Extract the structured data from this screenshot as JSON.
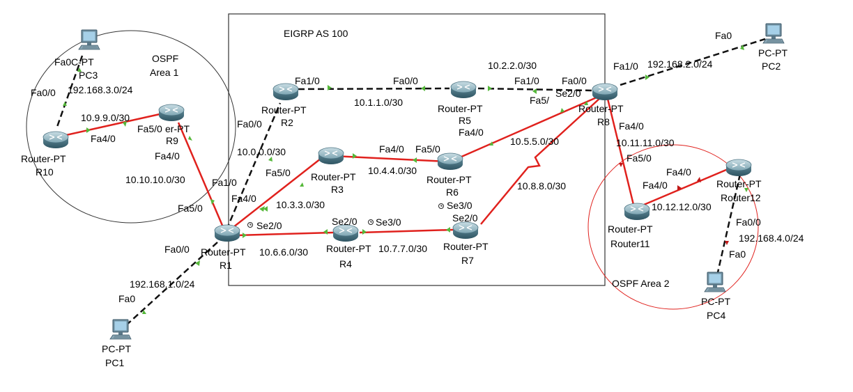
{
  "regions": {
    "eigrp": "EIGRP AS 100",
    "ospf1_line1": "OSPF",
    "ospf1_line2": "Area 1",
    "ospf2": "OSPF Area 2"
  },
  "devices": {
    "R1": {
      "type": "Router-PT",
      "name": "R1"
    },
    "R2": {
      "type": "Router-PT",
      "name": "R2"
    },
    "R3": {
      "type": "Router-PT",
      "name": "R3"
    },
    "R4": {
      "type": "Router-PT",
      "name": "R4"
    },
    "R5": {
      "type": "Router-PT",
      "name": "R5"
    },
    "R6": {
      "type": "Router-PT",
      "name": "R6"
    },
    "R7": {
      "type": "Router-PT",
      "name": "R7"
    },
    "R8": {
      "type": "Router-PT",
      "name": "R8"
    },
    "R9": {
      "type": "er-PT",
      "name": "R9"
    },
    "R10": {
      "type": "Router-PT",
      "name": "R10"
    },
    "Router11": {
      "type": "Router-PT",
      "name": "Router11"
    },
    "Router12": {
      "type": "Router-PT",
      "name": "Router12"
    },
    "PC1": {
      "type": "PC-PT",
      "name": "PC1"
    },
    "PC2": {
      "type": "PC-PT",
      "name": "PC2"
    },
    "PC3": {
      "type": "C-PT",
      "name": "PC3"
    },
    "PC4": {
      "type": "PC-PT",
      "name": "PC4"
    }
  },
  "networks": {
    "n1": "192.168.1.0/24",
    "n2": "192.168.2.0/24",
    "n3": "192.168.3.0/24",
    "n4": "192.168.4.0/24",
    "n10000": "10.0.0.0/30",
    "n10110": "10.1.1.0/30",
    "n10220": "10.2.2.0/30",
    "n10330": "10.3.3.0/30",
    "n10440": "10.4.4.0/30",
    "n10550": "10.5.5.0/30",
    "n10660": "10.6.6.0/30",
    "n10770": "10.7.7.0/30",
    "n10880": "10.8.8.0/30",
    "n10990": "10.9.9.0/30",
    "n101010": "10.10.10.0/30",
    "n101111": "10.11.11.0/30",
    "n101212": "10.12.12.0/30"
  },
  "interfaces": {
    "pc3_fa0": "Fa0",
    "r10_fa00": "Fa0/0",
    "r10_fa40": "Fa4/0",
    "r9_fa50": "Fa5/0",
    "r9_fa40": "Fa4/0",
    "r1_fa10": "Fa1/0",
    "r1_fa50": "Fa5/0",
    "r1_fa40": "Fa4/0",
    "r1_fa00": "Fa0/0",
    "r1_se20": "Se2/0",
    "pc1_fa0": "Fa0",
    "r2_fa10": "Fa1/0",
    "r2_fa00": "Fa0/0",
    "r5_fa00": "Fa0/0",
    "r5_fa10": "Fa1/0",
    "r3_fa50": "Fa5/0",
    "r3_fa40": "Fa4/0",
    "r6_fa50": "Fa5/0",
    "r6_fa40": "Fa4/0",
    "r4_se20": "Se2/0",
    "r4_se30": "Se3/0",
    "r7_se30": "Se3/0",
    "r7_se20": "Se2/0",
    "r8_fa00": "Fa0/0",
    "r8_se20": "Se2/0",
    "r8_fa5": "Fa5/",
    "r8_fa10": "Fa1/0",
    "r8_fa40": "Fa4/0",
    "pc2_fa0": "Fa0",
    "r11_fa50": "Fa5/0",
    "r11_fa40": "Fa4/0",
    "r12_fa40": "Fa4/0",
    "r12_fa00": "Fa0/0",
    "pc4_fa0": "Fa0"
  },
  "colors": {
    "copper": "#e0211d",
    "serial": "#e0211d",
    "straight": "#111111",
    "up": "#55b83a",
    "ospf2": "#e0211d"
  }
}
